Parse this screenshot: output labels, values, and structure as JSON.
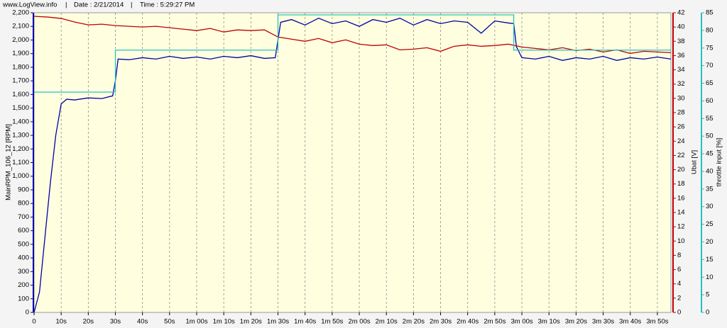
{
  "header": {
    "site": "www.LogView.info",
    "separator": "|",
    "date": "Date : 2/21/2014",
    "time": "Time : 5:29:27 PM"
  },
  "chart_data": {
    "type": "line",
    "xlim": [
      0,
      235
    ],
    "xticks": [
      0,
      {
        "value": 10,
        "label": "10s"
      },
      {
        "value": 20,
        "label": "20s"
      },
      {
        "value": 30,
        "label": "30s"
      },
      {
        "value": 40,
        "label": "40s"
      },
      {
        "value": 50,
        "label": "50s"
      },
      {
        "value": 60,
        "label": "1m 00s"
      },
      {
        "value": 70,
        "label": "1m 10s"
      },
      {
        "value": 80,
        "label": "1m 20s"
      },
      {
        "value": 90,
        "label": "1m 30s"
      },
      {
        "value": 100,
        "label": "1m 40s"
      },
      {
        "value": 110,
        "label": "1m 50s"
      },
      {
        "value": 120,
        "label": "2m 00s"
      },
      {
        "value": 130,
        "label": "2m 10s"
      },
      {
        "value": 140,
        "label": "2m 20s"
      },
      {
        "value": 150,
        "label": "2m 30s"
      },
      {
        "value": 160,
        "label": "2m 40s"
      },
      {
        "value": 170,
        "label": "2m 50s"
      },
      {
        "value": 180,
        "label": "3m 00s"
      },
      {
        "value": 190,
        "label": "3m 10s"
      },
      {
        "value": 200,
        "label": "3m 20s"
      },
      {
        "value": 210,
        "label": "3m 30s"
      },
      {
        "value": 220,
        "label": "3m 40s"
      },
      {
        "value": 230,
        "label": "3m 50s"
      }
    ],
    "ylabel": "MainRPM_106_12 [RPM]",
    "ylim": [
      0,
      2200
    ],
    "yticks": [
      0,
      100,
      200,
      300,
      400,
      500,
      600,
      700,
      800,
      900,
      {
        "value": 1000,
        "label": "1,000"
      },
      {
        "value": 1100,
        "label": "1,100"
      },
      {
        "value": 1200,
        "label": "1,200"
      },
      {
        "value": 1300,
        "label": "1,300"
      },
      {
        "value": 1400,
        "label": "1,400"
      },
      {
        "value": 1500,
        "label": "1,500"
      },
      {
        "value": 1600,
        "label": "1,600"
      },
      {
        "value": 1700,
        "label": "1,700"
      },
      {
        "value": 1800,
        "label": "1,800"
      },
      {
        "value": 1900,
        "label": "1,900"
      },
      {
        "value": 2000,
        "label": "2,000"
      },
      {
        "value": 2100,
        "label": "2,100"
      },
      {
        "value": 2200,
        "label": "2,200"
      }
    ],
    "y2label": "Ubat [V]",
    "y2lim": [
      0,
      42
    ],
    "y2ticks": [
      0,
      2,
      4,
      6,
      8,
      10,
      12,
      14,
      16,
      18,
      20,
      22,
      24,
      26,
      28,
      30,
      32,
      34,
      36,
      38,
      40,
      42
    ],
    "y3label": "throttle input [%]",
    "y3lim": [
      0,
      85
    ],
    "y3ticks": [
      0,
      5,
      10,
      15,
      20,
      25,
      30,
      35,
      40,
      45,
      50,
      55,
      60,
      65,
      70,
      75,
      80,
      85
    ],
    "grid": true,
    "series": [
      {
        "name": "MainRPM_106_12",
        "color": "#0000a8",
        "axis": "y",
        "x": [
          0,
          2,
          4,
          6,
          8,
          10,
          12,
          15,
          20,
          25,
          29,
          30,
          31,
          35,
          40,
          45,
          50,
          55,
          60,
          65,
          70,
          75,
          80,
          85,
          89,
          90,
          91,
          95,
          100,
          105,
          110,
          115,
          120,
          125,
          130,
          135,
          140,
          145,
          150,
          155,
          160,
          165,
          170,
          175,
          177,
          178,
          180,
          185,
          190,
          195,
          200,
          205,
          210,
          215,
          220,
          225,
          230,
          235
        ],
        "values": [
          0,
          150,
          550,
          950,
          1300,
          1530,
          1565,
          1560,
          1575,
          1570,
          1590,
          1700,
          1860,
          1855,
          1870,
          1860,
          1880,
          1865,
          1875,
          1860,
          1880,
          1870,
          1885,
          1865,
          1870,
          2000,
          2130,
          2150,
          2110,
          2160,
          2120,
          2140,
          2100,
          2150,
          2130,
          2160,
          2110,
          2150,
          2120,
          2140,
          2130,
          2050,
          2140,
          2125,
          2120,
          1950,
          1870,
          1860,
          1880,
          1850,
          1870,
          1860,
          1880,
          1850,
          1870,
          1860,
          1875,
          1860
        ]
      },
      {
        "name": "Ubat",
        "color": "#c00000",
        "axis": "y2",
        "x": [
          0,
          5,
          10,
          15,
          20,
          25,
          30,
          35,
          40,
          45,
          50,
          55,
          60,
          65,
          70,
          75,
          80,
          85,
          90,
          95,
          100,
          105,
          110,
          115,
          120,
          125,
          130,
          135,
          140,
          145,
          150,
          155,
          160,
          165,
          170,
          175,
          180,
          185,
          190,
          195,
          200,
          205,
          210,
          215,
          220,
          225,
          230,
          235
        ],
        "values": [
          41.5,
          41.4,
          41.2,
          40.7,
          40.3,
          40.4,
          40.2,
          40.1,
          40.0,
          40.1,
          39.9,
          39.7,
          39.5,
          39.8,
          39.3,
          39.6,
          39.5,
          39.6,
          38.6,
          38.3,
          38.0,
          38.4,
          37.8,
          38.2,
          37.6,
          37.4,
          37.5,
          36.8,
          36.9,
          37.1,
          36.6,
          37.3,
          37.5,
          37.3,
          37.4,
          37.6,
          37.2,
          37.0,
          36.8,
          37.1,
          36.7,
          36.9,
          36.5,
          36.8,
          36.3,
          36.6,
          36.5,
          36.4
        ]
      },
      {
        "name": "throttle input",
        "color": "#28c0c0",
        "axis": "y3",
        "x": [
          0,
          30,
          30,
          90,
          90,
          177,
          177,
          235
        ],
        "values": [
          62.5,
          62.5,
          74.4,
          74.4,
          84.4,
          84.4,
          74.4,
          74.4
        ]
      }
    ]
  }
}
